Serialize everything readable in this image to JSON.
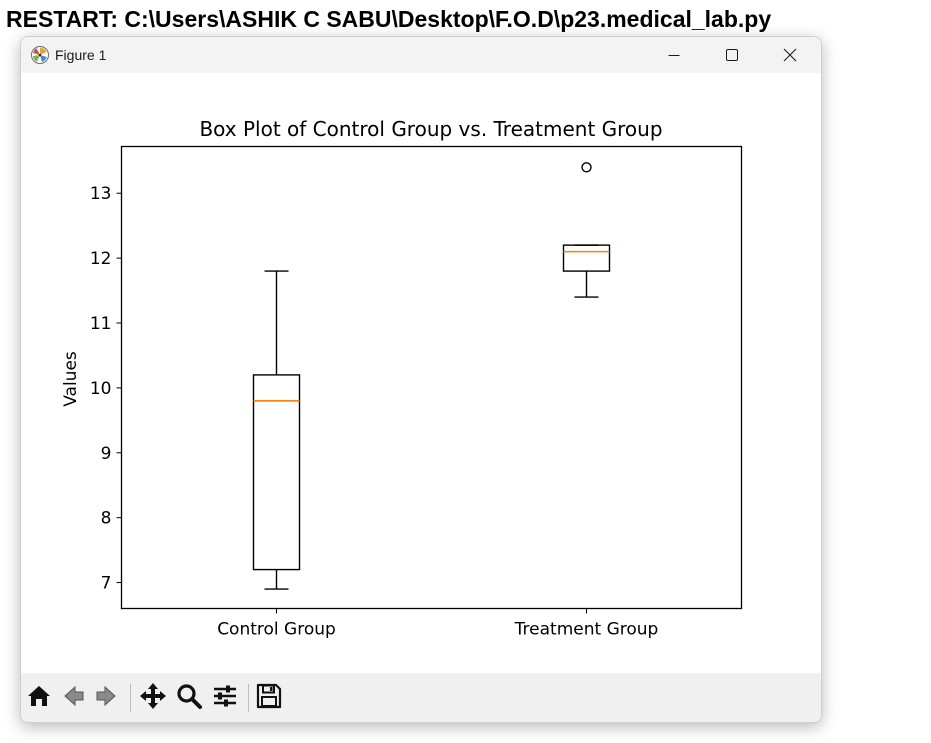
{
  "shell": {
    "restart_line": "RESTART: C:\\Users\\ASHIK C SABU\\Desktop\\F.O.D\\p23.medical_lab.py"
  },
  "window": {
    "title": "Figure 1"
  },
  "icons": {
    "app": "matplotlib-figure-icon",
    "minimize": "minimize-icon",
    "maximize": "maximize-icon",
    "close": "close-icon"
  },
  "toolbar": {
    "buttons": [
      {
        "icon": "home-icon"
      },
      {
        "icon": "back-arrow-icon"
      },
      {
        "icon": "forward-arrow-icon"
      },
      {
        "icon": "pan-move-icon"
      },
      {
        "icon": "zoom-magnifier-icon"
      },
      {
        "icon": "configure-subplots-icon"
      },
      {
        "icon": "save-floppy-icon"
      }
    ]
  },
  "chart_data": {
    "type": "boxplot",
    "title": "Box Plot of Control Group vs. Treatment Group",
    "xlabel": "",
    "ylabel": "Values",
    "categories": [
      "Control Group",
      "Treatment Group"
    ],
    "ylim": [
      6.6,
      13.72
    ],
    "yticks": [
      7,
      8,
      9,
      10,
      11,
      12,
      13
    ],
    "grid": false,
    "boxes": [
      {
        "category": "Control Group",
        "whisker_low": 6.9,
        "q1": 7.2,
        "median": 9.8,
        "q3": 10.2,
        "whisker_high": 11.8,
        "outliers": []
      },
      {
        "category": "Treatment Group",
        "whisker_low": 11.4,
        "q1": 11.8,
        "median": 12.1,
        "q3": 12.2,
        "whisker_high": 12.2,
        "outliers": [
          13.4
        ]
      }
    ],
    "colors": {
      "box": "#000000",
      "median": "#ff7f0e",
      "axes": "#000000"
    }
  }
}
